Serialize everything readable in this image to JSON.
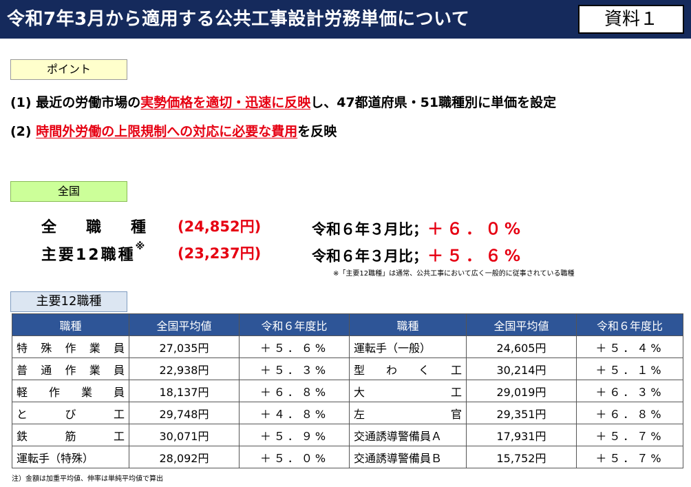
{
  "header": {
    "title": "令和7年3月から適用する公共工事設計労務単価について",
    "doc_label": "資料１"
  },
  "point_tag": "ポイント",
  "points": [
    {
      "prefix": "(1) 最近の労働市場の",
      "highlight": "実勢価格を適切・迅速に反映",
      "suffix": "し、47都道府県・51職種別に単価を設定"
    },
    {
      "prefix": "(2) ",
      "highlight": "時間外労働の上限規制への対応に必要な費用",
      "suffix": "を反映"
    }
  ],
  "national_tag": "全国",
  "summary": {
    "all": {
      "label": "全職種",
      "price": "(24,852円)",
      "cmp_label": "令和６年３月比；",
      "cmp_value": "＋６．０%"
    },
    "major": {
      "label": "主要12職種",
      "mark": "※",
      "price": "(23,237円)",
      "cmp_label": "令和６年３月比；",
      "cmp_value": "＋５．６%"
    },
    "note": "※「主要12職種」は通常、公共工事において広く一般的に従事されている職種"
  },
  "major_tag": "主要12職種",
  "table": {
    "headers": [
      "職種",
      "全国平均値",
      "令和６年度比",
      "職種",
      "全国平均値",
      "令和６年度比"
    ],
    "rows": [
      [
        "特殊作業員",
        "27,035円",
        "＋５．６%",
        "運転手（一般）",
        "24,605円",
        "＋５．４%"
      ],
      [
        "普通作業員",
        "22,938円",
        "＋５．３%",
        "型わく工",
        "30,214円",
        "＋５．１%"
      ],
      [
        "軽作業員",
        "18,137円",
        "＋６．８%",
        "大工",
        "29,019円",
        "＋６．３%"
      ],
      [
        "とび工",
        "29,748円",
        "＋４．８%",
        "左官",
        "29,351円",
        "＋６．８%"
      ],
      [
        "鉄筋工",
        "30,071円",
        "＋５．９%",
        "交通誘導警備員Ａ",
        "17,931円",
        "＋５．７%"
      ],
      [
        "運転手（特殊）",
        "28,092円",
        "＋５．０%",
        "交通誘導警備員Ｂ",
        "15,752円",
        "＋５．７%"
      ]
    ]
  },
  "footer_note": "注）金額は加重平均値、伸率は単純平均値で算出",
  "colors": {
    "header_bg": "#152a5c",
    "highlight": "#e60012",
    "table_header_bg": "#2e5597",
    "point_tag_bg": "#ffffcc",
    "national_tag_bg": "#ccff99",
    "major_tag_bg": "#dce6f2"
  }
}
